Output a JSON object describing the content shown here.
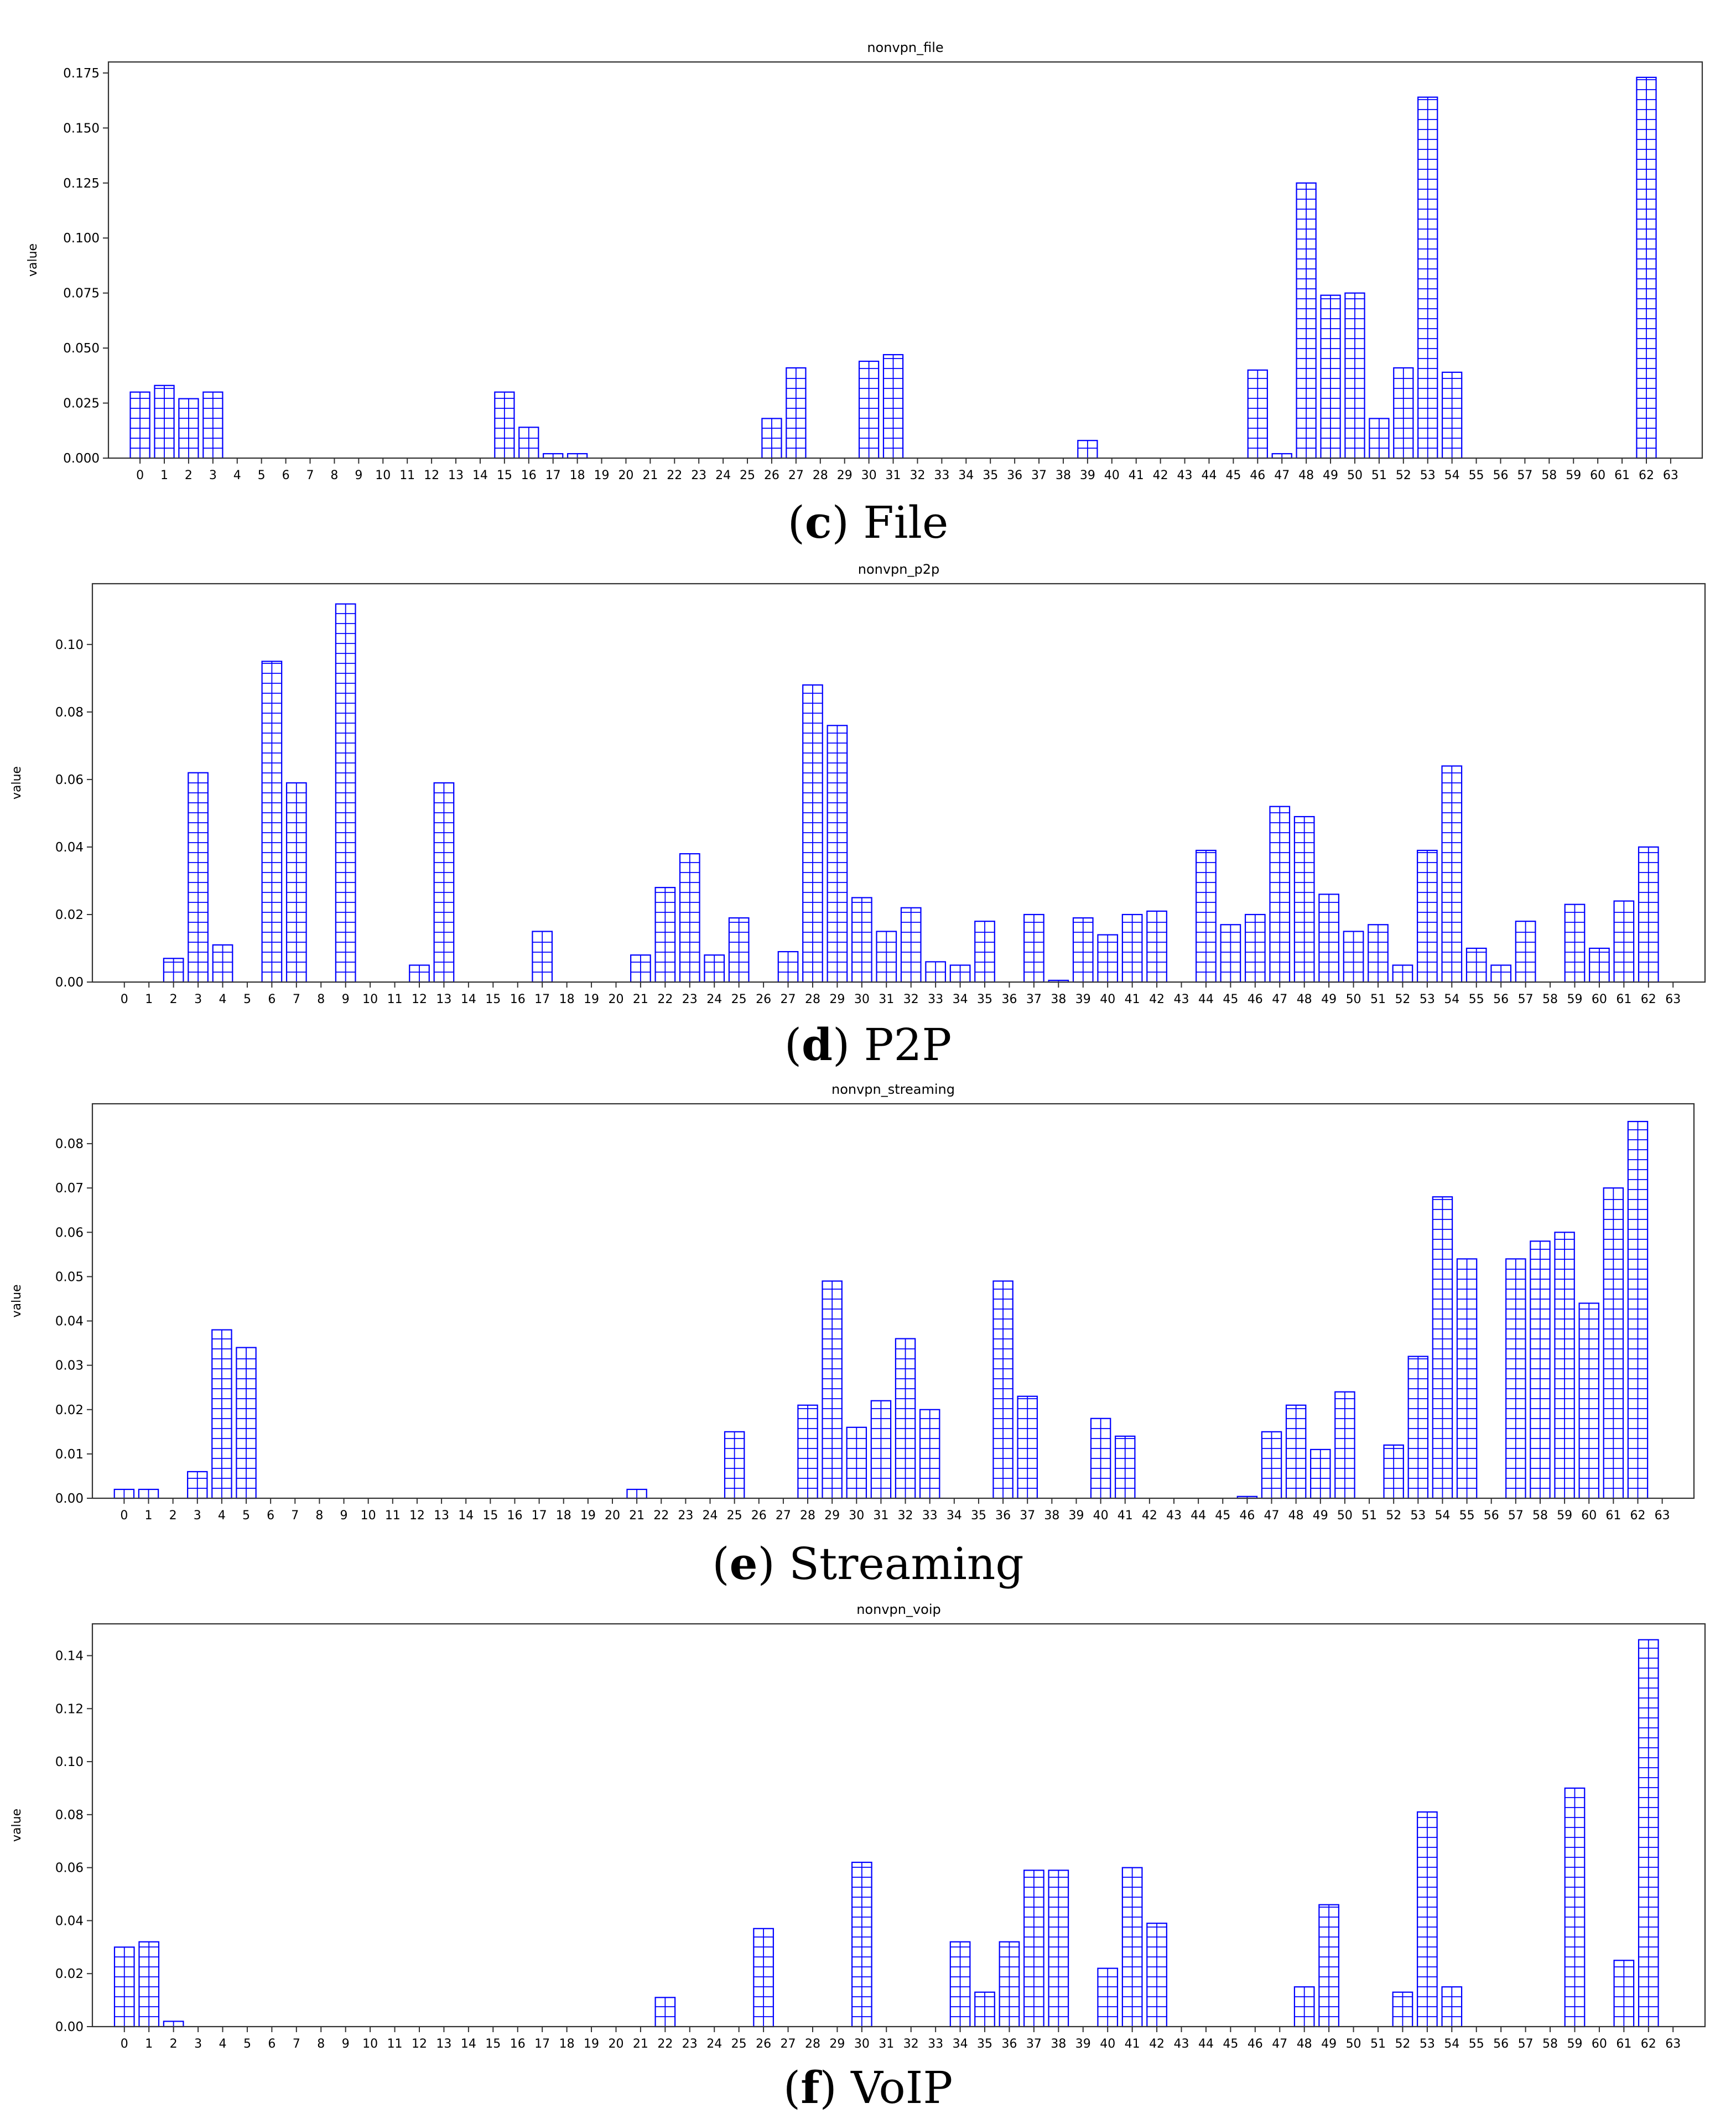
{
  "panels": [
    {
      "letter": "c",
      "caption": "File",
      "chart_data": {
        "type": "bar",
        "title": "nonvpn_file",
        "xlabel": "",
        "ylabel": "value",
        "ylim": [
          0,
          0.18
        ],
        "yticks": [
          0.0,
          0.025,
          0.05,
          0.075,
          0.1,
          0.125,
          0.15,
          0.175
        ],
        "ytick_labels": [
          "0.000",
          "0.025",
          "0.050",
          "0.075",
          "0.100",
          "0.125",
          "0.150",
          "0.175"
        ],
        "categories": [
          "0",
          "1",
          "2",
          "3",
          "4",
          "5",
          "6",
          "7",
          "8",
          "9",
          "10",
          "11",
          "12",
          "13",
          "14",
          "15",
          "16",
          "17",
          "18",
          "19",
          "20",
          "21",
          "22",
          "23",
          "24",
          "25",
          "26",
          "27",
          "28",
          "29",
          "30",
          "31",
          "32",
          "33",
          "34",
          "35",
          "36",
          "37",
          "38",
          "39",
          "40",
          "41",
          "42",
          "43",
          "44",
          "45",
          "46",
          "47",
          "48",
          "49",
          "50",
          "51",
          "52",
          "53",
          "54",
          "55",
          "56",
          "57",
          "58",
          "59",
          "60",
          "61",
          "62",
          "63"
        ],
        "values": [
          0.03,
          0.033,
          0.027,
          0.03,
          0,
          0,
          0,
          0,
          0,
          0,
          0,
          0,
          0,
          0,
          0,
          0.03,
          0.014,
          0.002,
          0.002,
          0,
          0,
          0,
          0,
          0,
          0,
          0,
          0.018,
          0.041,
          0,
          0,
          0.044,
          0.047,
          0,
          0,
          0,
          0,
          0,
          0,
          0,
          0.008,
          0,
          0,
          0,
          0,
          0,
          0,
          0.04,
          0.002,
          0.125,
          0.074,
          0.075,
          0.018,
          0.041,
          0.164,
          0.039,
          0,
          0,
          0,
          0,
          0,
          0,
          0,
          0.173,
          0
        ],
        "bar_edge_color": "#0000ff",
        "bar_fill": "#ffffff"
      }
    },
    {
      "letter": "d",
      "caption": "P2P",
      "chart_data": {
        "type": "bar",
        "title": "nonvpn_p2p",
        "xlabel": "",
        "ylabel": "value",
        "ylim": [
          0,
          0.118
        ],
        "yticks": [
          0.0,
          0.02,
          0.04,
          0.06,
          0.08,
          0.1
        ],
        "ytick_labels": [
          "0.00",
          "0.02",
          "0.04",
          "0.06",
          "0.08",
          "0.10"
        ],
        "categories": [
          "0",
          "1",
          "2",
          "3",
          "4",
          "5",
          "6",
          "7",
          "8",
          "9",
          "10",
          "11",
          "12",
          "13",
          "14",
          "15",
          "16",
          "17",
          "18",
          "19",
          "20",
          "21",
          "22",
          "23",
          "24",
          "25",
          "26",
          "27",
          "28",
          "29",
          "30",
          "31",
          "32",
          "33",
          "34",
          "35",
          "36",
          "37",
          "38",
          "39",
          "40",
          "41",
          "42",
          "43",
          "44",
          "45",
          "46",
          "47",
          "48",
          "49",
          "50",
          "51",
          "52",
          "53",
          "54",
          "55",
          "56",
          "57",
          "58",
          "59",
          "60",
          "61",
          "62",
          "63"
        ],
        "values": [
          0,
          0,
          0.007,
          0.062,
          0.011,
          0,
          0.095,
          0.059,
          0,
          0.112,
          0,
          0,
          0.005,
          0.059,
          0,
          0,
          0,
          0.015,
          0,
          0,
          0,
          0.008,
          0.028,
          0.038,
          0.008,
          0.019,
          0,
          0.009,
          0.088,
          0.076,
          0.025,
          0.015,
          0.022,
          0.006,
          0.005,
          0.018,
          0,
          0.02,
          0.0005,
          0.019,
          0.014,
          0.02,
          0.021,
          0,
          0.039,
          0.017,
          0.02,
          0.052,
          0.049,
          0.026,
          0.015,
          0.017,
          0.005,
          0.039,
          0.064,
          0.01,
          0.005,
          0.018,
          0,
          0.023,
          0.01,
          0.024,
          0.04,
          0
        ],
        "bar_edge_color": "#0000ff",
        "bar_fill": "#ffffff"
      }
    },
    {
      "letter": "e",
      "caption": "Streaming",
      "chart_data": {
        "type": "bar",
        "title": "nonvpn_streaming",
        "xlabel": "",
        "ylabel": "value",
        "ylim": [
          0,
          0.089
        ],
        "yticks": [
          0.0,
          0.01,
          0.02,
          0.03,
          0.04,
          0.05,
          0.06,
          0.07,
          0.08
        ],
        "ytick_labels": [
          "0.00",
          "0.01",
          "0.02",
          "0.03",
          "0.04",
          "0.05",
          "0.06",
          "0.07",
          "0.08"
        ],
        "categories": [
          "0",
          "1",
          "2",
          "3",
          "4",
          "5",
          "6",
          "7",
          "8",
          "9",
          "10",
          "11",
          "12",
          "13",
          "14",
          "15",
          "16",
          "17",
          "18",
          "19",
          "20",
          "21",
          "22",
          "23",
          "24",
          "25",
          "26",
          "27",
          "28",
          "29",
          "30",
          "31",
          "32",
          "33",
          "34",
          "35",
          "36",
          "37",
          "38",
          "39",
          "40",
          "41",
          "42",
          "43",
          "44",
          "45",
          "46",
          "47",
          "48",
          "49",
          "50",
          "51",
          "52",
          "53",
          "54",
          "55",
          "56",
          "57",
          "58",
          "59",
          "60",
          "61",
          "62",
          "63"
        ],
        "values": [
          0.002,
          0.002,
          0,
          0.006,
          0.038,
          0.034,
          0,
          0,
          0,
          0,
          0,
          0,
          0,
          0,
          0,
          0,
          0,
          0,
          0,
          0,
          0,
          0.002,
          0,
          0,
          0,
          0.015,
          0,
          0,
          0.021,
          0.049,
          0.016,
          0.022,
          0.036,
          0.02,
          0,
          0,
          0.049,
          0.023,
          0,
          0,
          0.018,
          0.014,
          0,
          0,
          0,
          0,
          0.0004,
          0.015,
          0.021,
          0.011,
          0.024,
          0,
          0.012,
          0.032,
          0.068,
          0.054,
          0,
          0.054,
          0.058,
          0.06,
          0.044,
          0.07,
          0.085,
          0
        ],
        "bar_edge_color": "#0000ff",
        "bar_fill": "#ffffff"
      }
    },
    {
      "letter": "f",
      "caption": "VoIP",
      "chart_data": {
        "type": "bar",
        "title": "nonvpn_voip",
        "xlabel": "",
        "ylabel": "value",
        "ylim": [
          0,
          0.152
        ],
        "yticks": [
          0.0,
          0.02,
          0.04,
          0.06,
          0.08,
          0.1,
          0.12,
          0.14
        ],
        "ytick_labels": [
          "0.00",
          "0.02",
          "0.04",
          "0.06",
          "0.08",
          "0.10",
          "0.12",
          "0.14"
        ],
        "categories": [
          "0",
          "1",
          "2",
          "3",
          "4",
          "5",
          "6",
          "7",
          "8",
          "9",
          "10",
          "11",
          "12",
          "13",
          "14",
          "15",
          "16",
          "17",
          "18",
          "19",
          "20",
          "21",
          "22",
          "23",
          "24",
          "25",
          "26",
          "27",
          "28",
          "29",
          "30",
          "31",
          "32",
          "33",
          "34",
          "35",
          "36",
          "37",
          "38",
          "39",
          "40",
          "41",
          "42",
          "43",
          "44",
          "45",
          "46",
          "47",
          "48",
          "49",
          "50",
          "51",
          "52",
          "53",
          "54",
          "55",
          "56",
          "57",
          "58",
          "59",
          "60",
          "61",
          "62",
          "63"
        ],
        "values": [
          0.03,
          0.032,
          0.002,
          0,
          0,
          0,
          0,
          0,
          0,
          0,
          0,
          0,
          0,
          0,
          0,
          0,
          0,
          0,
          0,
          0,
          0,
          0,
          0.011,
          0,
          0,
          0,
          0.037,
          0,
          0,
          0,
          0.062,
          0,
          0,
          0,
          0.032,
          0.013,
          0.032,
          0.059,
          0.059,
          0,
          0.022,
          0.06,
          0.039,
          0,
          0,
          0,
          0,
          0,
          0.015,
          0.046,
          0,
          0,
          0.013,
          0.081,
          0.015,
          0,
          0,
          0,
          0,
          0.09,
          0,
          0.025,
          0.146,
          0
        ],
        "bar_edge_color": "#0000ff",
        "bar_fill": "#ffffff"
      }
    }
  ]
}
